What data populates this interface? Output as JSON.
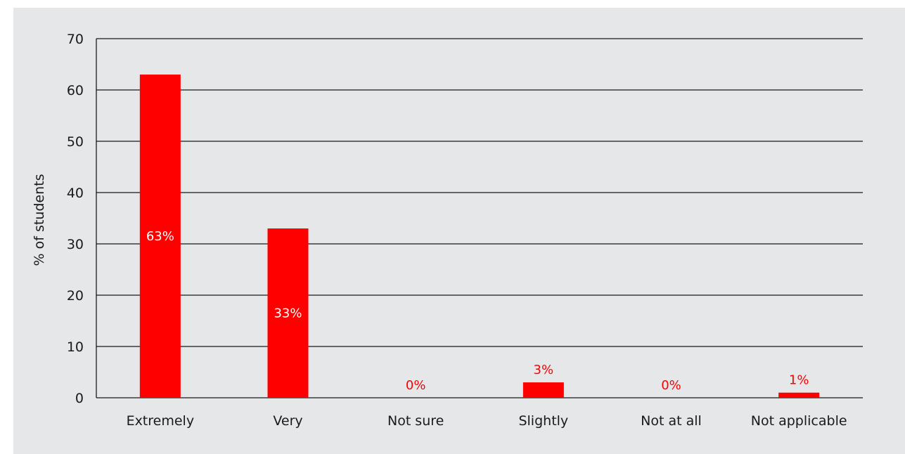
{
  "colors": {
    "bar": "#fe0000",
    "label_inside": "#ffffff",
    "label_outside": "#fe0000",
    "grid": "#1a1a1a",
    "background": "#e6e7e8"
  },
  "chart_data": {
    "type": "bar",
    "categories": [
      "Extremely",
      "Very",
      "Not sure",
      "Slightly",
      "Not at all",
      "Not applicable"
    ],
    "values": [
      63,
      33,
      0,
      3,
      0,
      1
    ],
    "data_labels": [
      "63%",
      "33%",
      "0%",
      "3%",
      "0%",
      "1%"
    ],
    "title": "",
    "xlabel": "",
    "ylabel": "% of students",
    "ylim": [
      0,
      70
    ],
    "yticks": [
      0,
      10,
      20,
      30,
      40,
      50,
      60,
      70
    ],
    "grid": true,
    "legend": "none"
  }
}
